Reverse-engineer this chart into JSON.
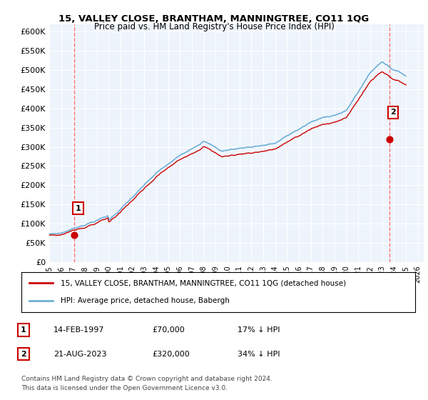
{
  "title": "15, VALLEY CLOSE, BRANTHAM, MANNINGTREE, CO11 1QG",
  "subtitle": "Price paid vs. HM Land Registry's House Price Index (HPI)",
  "ylabel": "",
  "yticks": [
    0,
    50000,
    100000,
    150000,
    200000,
    250000,
    300000,
    350000,
    400000,
    450000,
    500000,
    550000,
    600000
  ],
  "ytick_labels": [
    "£0",
    "£50K",
    "£100K",
    "£150K",
    "£200K",
    "£250K",
    "£300K",
    "£350K",
    "£400K",
    "£450K",
    "£500K",
    "£550K",
    "£600K"
  ],
  "ylim": [
    0,
    620000
  ],
  "xlim_start": 1995.0,
  "xlim_end": 2026.5,
  "hpi_color": "#6dafd6",
  "price_color": "#cc0000",
  "dashed_color": "#ff6666",
  "bg_chart": "#eef4fb",
  "bg_figure": "#ffffff",
  "grid_color": "#ffffff",
  "legend_label_price": "15, VALLEY CLOSE, BRANTHAM, MANNINGTREE, CO11 1QG (detached house)",
  "legend_label_hpi": "HPI: Average price, detached house, Babergh",
  "sale1_x": 1997.12,
  "sale1_y": 70000,
  "sale1_label": "1",
  "sale2_x": 2023.63,
  "sale2_y": 320000,
  "sale2_label": "2",
  "footer1": "Contains HM Land Registry data © Crown copyright and database right 2024.",
  "footer2": "This data is licensed under the Open Government Licence v3.0.",
  "table_rows": [
    [
      "1",
      "14-FEB-1997",
      "£70,000",
      "17% ↓ HPI"
    ],
    [
      "2",
      "21-AUG-2023",
      "£320,000",
      "34% ↓ HPI"
    ]
  ]
}
